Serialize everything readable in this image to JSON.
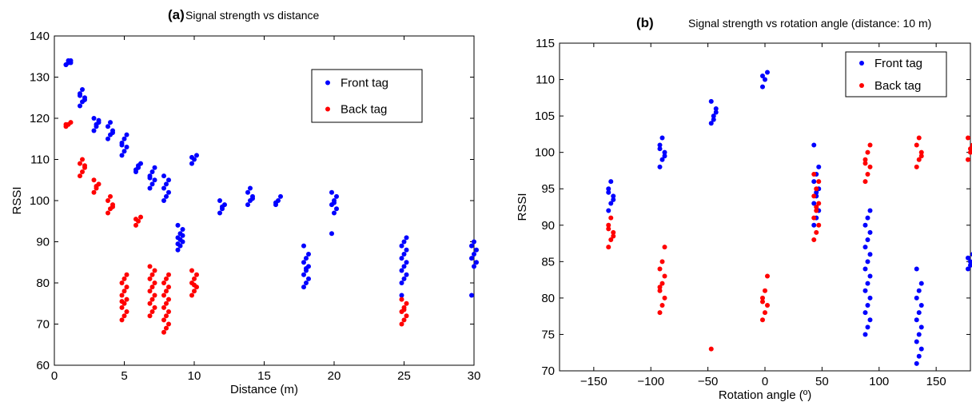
{
  "colors": {
    "front": "#0000ff",
    "back": "#ff0000",
    "axis": "#000000"
  },
  "chart_data": [
    {
      "type": "scatter",
      "title_prefix": "(a)",
      "title": "Signal strength vs distance",
      "xlabel": "Distance (m)",
      "ylabel": "RSSI",
      "xlim": [
        0,
        30
      ],
      "ylim": [
        60,
        140
      ],
      "xticks": [
        0,
        5,
        10,
        15,
        20,
        25,
        30
      ],
      "yticks": [
        60,
        70,
        80,
        90,
        100,
        110,
        120,
        130,
        140
      ],
      "grid": false,
      "legend_position": "top-right",
      "series": [
        {
          "name": "Front tag",
          "color": "#0000ff",
          "clusters": [
            {
              "x": 1,
              "values": [
                133,
                133.5,
                134,
                133,
                134,
                133.5
              ]
            },
            {
              "x": 2,
              "values": [
                123,
                124,
                125,
                126,
                127,
                124.5,
                125.5
              ]
            },
            {
              "x": 3,
              "values": [
                117,
                118,
                119,
                120,
                118.5,
                119.5
              ]
            },
            {
              "x": 4,
              "values": [
                115,
                116,
                117,
                118,
                119,
                116.5
              ]
            },
            {
              "x": 5,
              "values": [
                111,
                112,
                113,
                114,
                115,
                116,
                113.5
              ]
            },
            {
              "x": 6,
              "values": [
                107,
                108,
                109,
                107.5,
                108.5
              ]
            },
            {
              "x": 7,
              "values": [
                103,
                104,
                105,
                106,
                107,
                108,
                105.5
              ]
            },
            {
              "x": 8,
              "values": [
                100,
                101,
                102,
                103,
                104,
                105,
                106
              ]
            },
            {
              "x": 9,
              "values": [
                88,
                89,
                90,
                91,
                92,
                93,
                94,
                90.5,
                91.5,
                89.5
              ]
            },
            {
              "x": 10,
              "values": [
                109,
                110,
                111,
                110.5
              ]
            },
            {
              "x": 12,
              "values": [
                97,
                98,
                99,
                100,
                98.5
              ]
            },
            {
              "x": 14,
              "values": [
                99,
                100,
                101,
                102,
                103,
                100.5
              ]
            },
            {
              "x": 16,
              "values": [
                99,
                100,
                101,
                99.5
              ]
            },
            {
              "x": 18,
              "values": [
                79,
                80,
                81,
                82,
                83,
                84,
                85,
                86,
                87,
                89,
                83.5
              ]
            },
            {
              "x": 20,
              "values": [
                92,
                97,
                98,
                99,
                100,
                101,
                102,
                99.5
              ]
            },
            {
              "x": 25,
              "values": [
                80,
                81,
                82,
                83,
                84,
                85,
                86,
                87,
                88,
                89,
                90,
                91,
                77
              ]
            },
            {
              "x": 30,
              "values": [
                77,
                84,
                85,
                86,
                87,
                88,
                89,
                90
              ]
            }
          ]
        },
        {
          "name": "Back tag",
          "color": "#ff0000",
          "clusters": [
            {
              "x": 1,
              "values": [
                118,
                118.5,
                119,
                118.5
              ]
            },
            {
              "x": 2,
              "values": [
                106,
                107,
                108,
                109,
                110,
                108.5
              ]
            },
            {
              "x": 3,
              "values": [
                102,
                103,
                104,
                105,
                103.5
              ]
            },
            {
              "x": 4,
              "values": [
                97,
                98,
                99,
                100,
                101,
                98.5
              ]
            },
            {
              "x": 6,
              "values": [
                94,
                95,
                96,
                95.5
              ]
            },
            {
              "x": 5,
              "values": [
                71,
                72,
                73,
                74,
                75,
                76,
                77,
                78,
                79,
                80,
                81,
                82,
                75.5
              ]
            },
            {
              "x": 7,
              "values": [
                72,
                73,
                74,
                75,
                76,
                77,
                78,
                79,
                80,
                81,
                82,
                83,
                84
              ]
            },
            {
              "x": 8,
              "values": [
                68,
                69,
                70,
                71,
                72,
                73,
                74,
                75,
                76,
                77,
                78,
                79,
                80,
                81,
                82
              ]
            },
            {
              "x": 10,
              "values": [
                77,
                78,
                79,
                80,
                81,
                82,
                83,
                79.5
              ]
            },
            {
              "x": 25,
              "values": [
                70,
                71,
                72,
                73,
                74,
                75,
                76,
                73.5
              ]
            }
          ]
        }
      ]
    },
    {
      "type": "scatter",
      "title_prefix": "(b)",
      "title": "Signal strength vs rotation angle (distance: 10 m)",
      "xlabel": "Rotation angle (º)",
      "ylabel": "RSSI",
      "xlim": [
        -180,
        180
      ],
      "ylim": [
        70,
        115
      ],
      "xticks": [
        -150,
        -100,
        -50,
        0,
        50,
        100,
        150
      ],
      "yticks": [
        70,
        75,
        80,
        85,
        90,
        95,
        100,
        105,
        110,
        115
      ],
      "grid": false,
      "legend_position": "top-right",
      "series": [
        {
          "name": "Front tag",
          "color": "#0000ff",
          "clusters": [
            {
              "x": -135,
              "values": [
                92,
                93,
                94,
                95,
                96,
                93.5,
                94.5
              ]
            },
            {
              "x": -90,
              "values": [
                98,
                99,
                100,
                101,
                102,
                99.5,
                100.5
              ]
            },
            {
              "x": -45,
              "values": [
                104,
                105,
                106,
                107,
                104.5,
                105.5
              ]
            },
            {
              "x": 0,
              "values": [
                109,
                110,
                111,
                110.5
              ]
            },
            {
              "x": 45,
              "values": [
                90,
                91,
                92,
                93,
                94,
                95,
                96,
                97,
                98,
                101,
                94.5
              ]
            },
            {
              "x": 90,
              "values": [
                75,
                76,
                77,
                78,
                79,
                80,
                81,
                82,
                83,
                84,
                85,
                86,
                87,
                88,
                89,
                90,
                91,
                92
              ]
            },
            {
              "x": 135,
              "values": [
                71,
                72,
                73,
                74,
                75,
                76,
                77,
                78,
                79,
                80,
                81,
                82,
                84
              ]
            },
            {
              "x": 180,
              "values": [
                84,
                85,
                86,
                85.5,
                84.5
              ]
            }
          ]
        },
        {
          "name": "Back tag",
          "color": "#ff0000",
          "clusters": [
            {
              "x": -135,
              "values": [
                87,
                88,
                89,
                90,
                91,
                88.5,
                89.5
              ]
            },
            {
              "x": -90,
              "values": [
                78,
                79,
                80,
                81,
                82,
                83,
                84,
                85,
                87,
                81.5
              ]
            },
            {
              "x": -45,
              "values": [
                73
              ]
            },
            {
              "x": 0,
              "values": [
                77,
                78,
                79,
                80,
                81,
                83,
                79.5
              ]
            },
            {
              "x": 45,
              "values": [
                88,
                89,
                90,
                91,
                92,
                93,
                94,
                95,
                96,
                97,
                92.5
              ]
            },
            {
              "x": 90,
              "values": [
                96,
                97,
                98,
                99,
                100,
                101,
                98.5
              ]
            },
            {
              "x": 135,
              "values": [
                98,
                99,
                100,
                101,
                102,
                99.5
              ]
            },
            {
              "x": 180,
              "values": [
                99,
                100,
                101,
                102,
                100.5
              ]
            }
          ]
        }
      ]
    }
  ]
}
